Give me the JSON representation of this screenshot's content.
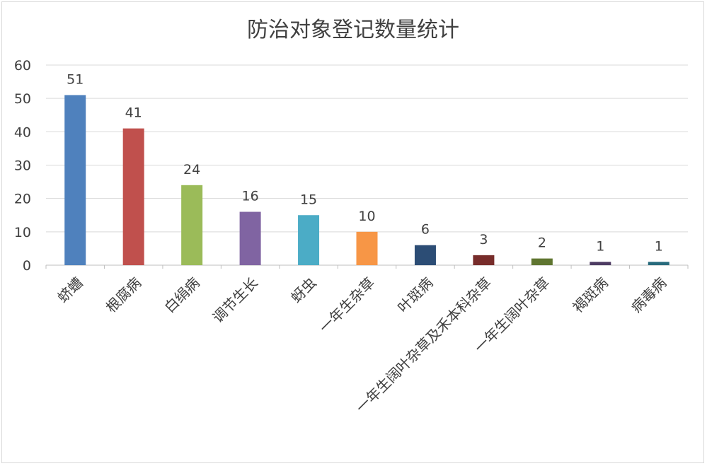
{
  "chart_data": {
    "type": "bar",
    "title": "防治对象登记数量统计",
    "categories": [
      "蛴螬",
      "根腐病",
      "白绢病",
      "调节生长",
      "蚜虫",
      "一年生杂草",
      "叶斑病",
      "一年生阔叶杂草及禾本科杂草",
      "一年生阔叶杂草",
      "褐斑病",
      "病毒病"
    ],
    "values": [
      51,
      41,
      24,
      16,
      15,
      10,
      6,
      3,
      2,
      1,
      1
    ],
    "colors": [
      "#4f81bd",
      "#c0504d",
      "#9bbb59",
      "#8064a2",
      "#4bacc6",
      "#f79646",
      "#2c4d75",
      "#772c2a",
      "#5f7530",
      "#4d3b62",
      "#276a7c"
    ],
    "ylim": [
      0,
      60
    ],
    "yticks": [
      0,
      10,
      20,
      30,
      40,
      50,
      60
    ],
    "xlabel": "",
    "ylabel": "",
    "grid": true,
    "legend": "none",
    "data_labels": true
  }
}
